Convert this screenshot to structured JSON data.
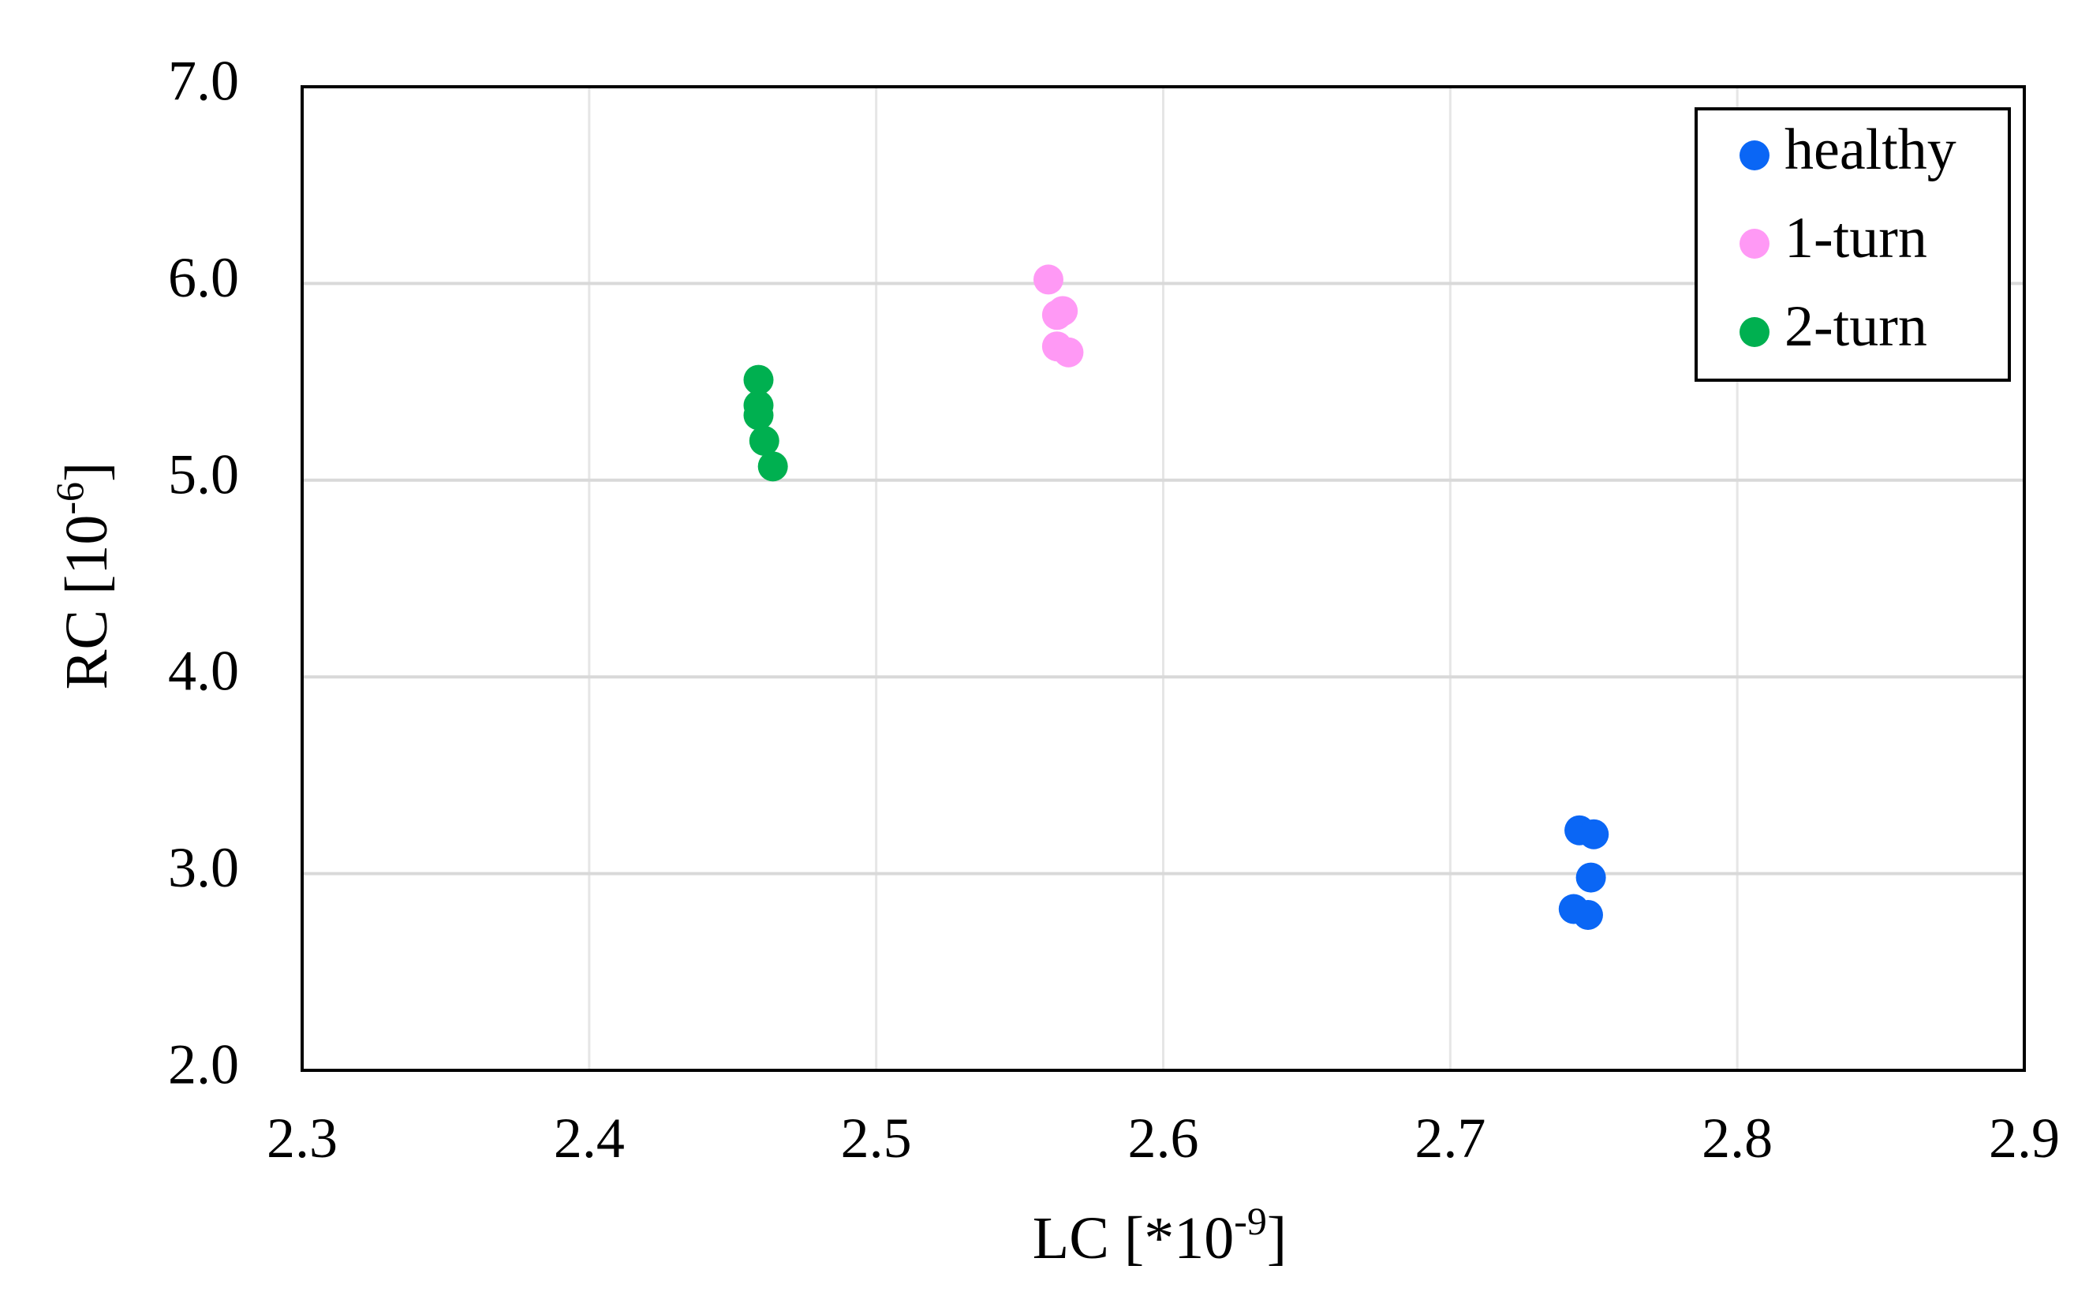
{
  "chart_data": {
    "type": "scatter",
    "xlabel": "LC [*10",
    "xlabel_sup": "-9",
    "xlabel_end": "]",
    "ylabel": "RC [10",
    "ylabel_sup": "-6",
    "ylabel_end": "]",
    "xlim": [
      2.3,
      2.9
    ],
    "ylim": [
      2.0,
      7.0
    ],
    "xticks": [
      2.3,
      2.4,
      2.5,
      2.6,
      2.7,
      2.8,
      2.9
    ],
    "xtick_labels": [
      "2.3",
      "2.4",
      "2.5",
      "2.6",
      "2.7",
      "2.8",
      "2.9"
    ],
    "yticks": [
      2.0,
      3.0,
      4.0,
      5.0,
      6.0,
      7.0
    ],
    "ytick_labels": [
      "2.0",
      "3.0",
      "4.0",
      "5.0",
      "6.0",
      "7.0"
    ],
    "grid": true,
    "legend_position": "top-right",
    "series": [
      {
        "name": "healthy",
        "color": "#0a66f5",
        "points": [
          [
            2.745,
            3.22
          ],
          [
            2.75,
            3.2
          ],
          [
            2.749,
            2.98
          ],
          [
            2.743,
            2.82
          ],
          [
            2.748,
            2.79
          ]
        ]
      },
      {
        "name": "1-turn",
        "color": "#ff99f5",
        "points": [
          [
            2.56,
            6.02
          ],
          [
            2.565,
            5.86
          ],
          [
            2.563,
            5.84
          ],
          [
            2.563,
            5.68
          ],
          [
            2.567,
            5.65
          ]
        ]
      },
      {
        "name": "2-turn",
        "color": "#00b050",
        "points": [
          [
            2.459,
            5.51
          ],
          [
            2.459,
            5.38
          ],
          [
            2.459,
            5.33
          ],
          [
            2.461,
            5.2
          ],
          [
            2.464,
            5.07
          ]
        ]
      }
    ]
  }
}
